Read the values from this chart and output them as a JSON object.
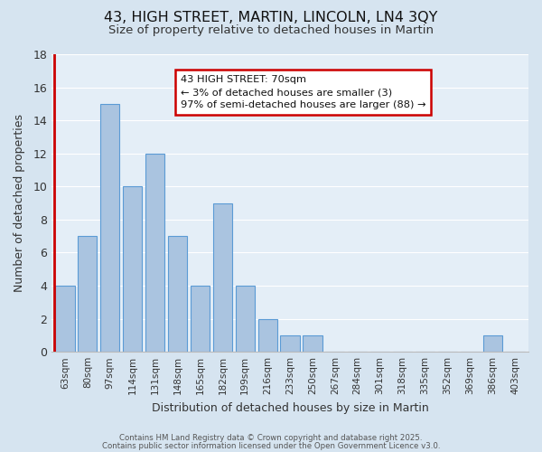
{
  "title": "43, HIGH STREET, MARTIN, LINCOLN, LN4 3QY",
  "subtitle": "Size of property relative to detached houses in Martin",
  "xlabel": "Distribution of detached houses by size in Martin",
  "ylabel": "Number of detached properties",
  "bar_labels": [
    "63sqm",
    "80sqm",
    "97sqm",
    "114sqm",
    "131sqm",
    "148sqm",
    "165sqm",
    "182sqm",
    "199sqm",
    "216sqm",
    "233sqm",
    "250sqm",
    "267sqm",
    "284sqm",
    "301sqm",
    "318sqm",
    "335sqm",
    "352sqm",
    "369sqm",
    "386sqm",
    "403sqm"
  ],
  "bar_values": [
    4,
    7,
    15,
    10,
    12,
    7,
    4,
    9,
    4,
    2,
    1,
    1,
    0,
    0,
    0,
    0,
    0,
    0,
    0,
    1,
    0
  ],
  "bar_color": "#aac4e0",
  "bar_edge_color": "#5b9bd5",
  "highlight_color": "#cc0000",
  "red_line_x": -0.5,
  "annotation_title": "43 HIGH STREET: 70sqm",
  "annotation_line1": "← 3% of detached houses are smaller (3)",
  "annotation_line2": "97% of semi-detached houses are larger (88) →",
  "annotation_box_color": "#ffffff",
  "annotation_box_edge": "#cc0000",
  "ylim": [
    0,
    18
  ],
  "yticks": [
    0,
    2,
    4,
    6,
    8,
    10,
    12,
    14,
    16,
    18
  ],
  "bg_color": "#d6e4f0",
  "plot_bg_color": "#e4eef7",
  "grid_color": "#ffffff",
  "footer1": "Contains HM Land Registry data © Crown copyright and database right 2025.",
  "footer2": "Contains public sector information licensed under the Open Government Licence v3.0."
}
